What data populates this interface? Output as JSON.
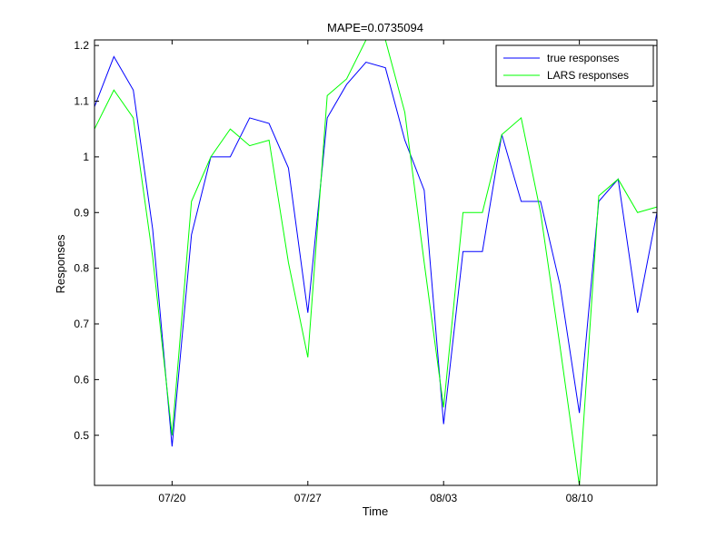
{
  "chart_data": {
    "type": "line",
    "title": "MAPE=0.0735094",
    "xlabel": "Time",
    "ylabel": "Responses",
    "x_ticks": [
      "07/20",
      "07/27",
      "08/03",
      "08/10"
    ],
    "x_tick_dates": [
      "07/20",
      "07/27",
      "08/03",
      "08/10"
    ],
    "x_start_date": "07/16",
    "x_end_date": "08/14",
    "y_ticks": [
      "0.5",
      "0.6",
      "0.7",
      "0.8",
      "0.9",
      "1",
      "1.1",
      "1.2"
    ],
    "ylim": [
      0.41,
      1.21
    ],
    "grid": false,
    "legend_position": "top-right",
    "series": [
      {
        "name": "true responses",
        "color": "#0000ff",
        "x": [
          "07/16",
          "07/17",
          "07/18",
          "07/19",
          "07/20",
          "07/21",
          "07/22",
          "07/23",
          "07/24",
          "07/25",
          "07/26",
          "07/27",
          "07/28",
          "07/29",
          "07/30",
          "07/31",
          "08/01",
          "08/02",
          "08/03",
          "08/04",
          "08/05",
          "08/06",
          "08/07",
          "08/08",
          "08/09",
          "08/10",
          "08/11",
          "08/12",
          "08/13",
          "08/14"
        ],
        "values": [
          1.09,
          1.18,
          1.12,
          0.87,
          0.48,
          0.86,
          1.0,
          1.0,
          1.07,
          1.06,
          0.98,
          0.72,
          1.07,
          1.13,
          1.17,
          1.16,
          1.03,
          0.94,
          0.52,
          0.83,
          0.83,
          1.04,
          0.92,
          0.92,
          0.77,
          0.54,
          0.92,
          0.96,
          0.72,
          0.9
        ]
      },
      {
        "name": "LARS responses",
        "color": "#00ff00",
        "x": [
          "07/16",
          "07/17",
          "07/18",
          "07/19",
          "07/20",
          "07/21",
          "07/22",
          "07/23",
          "07/24",
          "07/25",
          "07/26",
          "07/27",
          "07/28",
          "07/29",
          "07/30",
          "07/31",
          "08/01",
          "08/02",
          "08/03",
          "08/04",
          "08/05",
          "08/06",
          "08/07",
          "08/08",
          "08/09",
          "08/10",
          "08/11",
          "08/12",
          "08/13",
          "08/14"
        ],
        "values": [
          1.05,
          1.12,
          1.07,
          0.82,
          0.5,
          0.92,
          1.0,
          1.05,
          1.02,
          1.03,
          0.81,
          0.64,
          1.11,
          1.14,
          1.21,
          1.21,
          1.08,
          0.81,
          0.55,
          0.9,
          0.9,
          1.04,
          1.07,
          0.9,
          0.66,
          0.41,
          0.93,
          0.96,
          0.9,
          0.91
        ]
      }
    ]
  }
}
